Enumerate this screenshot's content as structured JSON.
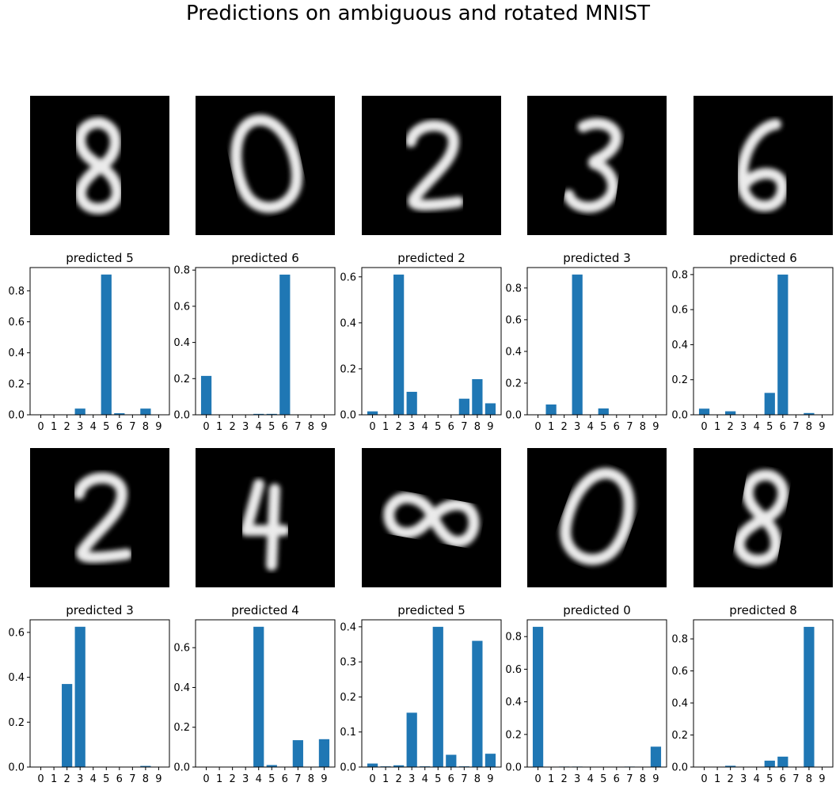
{
  "title": "Predictions on ambiguous and rotated MNIST",
  "colors": {
    "bar": "#1f77b4",
    "image_background": "#000000",
    "stroke": "#ffffff"
  },
  "panels": [
    {
      "image_glyph": "8",
      "image_rotation": 0
    },
    {
      "image_glyph": "0",
      "image_rotation": -12
    },
    {
      "image_glyph": "2",
      "image_rotation": 0
    },
    {
      "image_glyph": "3",
      "image_rotation": 8
    },
    {
      "image_glyph": "6",
      "image_rotation": 0
    },
    {
      "image_glyph": "2",
      "image_rotation": 0
    },
    {
      "image_glyph": "4",
      "image_rotation": 0
    },
    {
      "image_glyph": "8",
      "image_rotation": -80
    },
    {
      "image_glyph": "0",
      "image_rotation": 20
    },
    {
      "image_glyph": "8",
      "image_rotation": 10
    }
  ],
  "chart_data": [
    {
      "type": "bar",
      "title": "predicted 5",
      "categories": [
        "0",
        "1",
        "2",
        "3",
        "4",
        "5",
        "6",
        "7",
        "8",
        "9"
      ],
      "values": [
        0,
        0,
        0,
        0.04,
        0,
        0.905,
        0.01,
        0,
        0.04,
        0
      ],
      "yticks": [
        0.0,
        0.2,
        0.4,
        0.6,
        0.8
      ],
      "ylim": [
        0,
        0.95
      ]
    },
    {
      "type": "bar",
      "title": "predicted 6",
      "categories": [
        "0",
        "1",
        "2",
        "3",
        "4",
        "5",
        "6",
        "7",
        "8",
        "9"
      ],
      "values": [
        0.215,
        0,
        0,
        0,
        0.005,
        0.005,
        0.775,
        0,
        0,
        0
      ],
      "yticks": [
        0.0,
        0.2,
        0.4,
        0.6,
        0.8
      ],
      "ylim": [
        0,
        0.814
      ]
    },
    {
      "type": "bar",
      "title": "predicted 2",
      "categories": [
        "0",
        "1",
        "2",
        "3",
        "4",
        "5",
        "6",
        "7",
        "8",
        "9"
      ],
      "values": [
        0.015,
        0,
        0.61,
        0.1,
        0,
        0,
        0,
        0.07,
        0.155,
        0.05
      ],
      "yticks": [
        0.0,
        0.2,
        0.4,
        0.6
      ],
      "ylim": [
        0,
        0.6405
      ]
    },
    {
      "type": "bar",
      "title": "predicted 3",
      "categories": [
        "0",
        "1",
        "2",
        "3",
        "4",
        "5",
        "6",
        "7",
        "8",
        "9"
      ],
      "values": [
        0,
        0.065,
        0,
        0.885,
        0,
        0.04,
        0,
        0,
        0,
        0
      ],
      "yticks": [
        0.0,
        0.2,
        0.4,
        0.6,
        0.8
      ],
      "ylim": [
        0,
        0.929
      ]
    },
    {
      "type": "bar",
      "title": "predicted 6",
      "categories": [
        "0",
        "1",
        "2",
        "3",
        "4",
        "5",
        "6",
        "7",
        "8",
        "9"
      ],
      "values": [
        0.035,
        0,
        0.02,
        0,
        0,
        0.125,
        0.8,
        0,
        0.01,
        0
      ],
      "yticks": [
        0.0,
        0.2,
        0.4,
        0.6,
        0.8
      ],
      "ylim": [
        0,
        0.84
      ]
    },
    {
      "type": "bar",
      "title": "predicted 3",
      "categories": [
        "0",
        "1",
        "2",
        "3",
        "4",
        "5",
        "6",
        "7",
        "8",
        "9"
      ],
      "values": [
        0,
        0,
        0.37,
        0.625,
        0,
        0,
        0,
        0,
        0.005,
        0
      ],
      "yticks": [
        0.0,
        0.2,
        0.4,
        0.6
      ],
      "ylim": [
        0,
        0.656
      ]
    },
    {
      "type": "bar",
      "title": "predicted 4",
      "categories": [
        "0",
        "1",
        "2",
        "3",
        "4",
        "5",
        "6",
        "7",
        "8",
        "9"
      ],
      "values": [
        0,
        0,
        0,
        0,
        0.705,
        0.01,
        0,
        0.135,
        0,
        0.14
      ],
      "yticks": [
        0.0,
        0.2,
        0.4,
        0.6
      ],
      "ylim": [
        0,
        0.74
      ]
    },
    {
      "type": "bar",
      "title": "predicted 5",
      "categories": [
        "0",
        "1",
        "2",
        "3",
        "4",
        "5",
        "6",
        "7",
        "8",
        "9"
      ],
      "values": [
        0.01,
        0.002,
        0.005,
        0.155,
        0.002,
        0.4,
        0.035,
        0.002,
        0.36,
        0.038
      ],
      "yticks": [
        0.0,
        0.1,
        0.2,
        0.3,
        0.4
      ],
      "ylim": [
        0,
        0.42
      ]
    },
    {
      "type": "bar",
      "title": "predicted 0",
      "categories": [
        "0",
        "1",
        "2",
        "3",
        "4",
        "5",
        "6",
        "7",
        "8",
        "9"
      ],
      "values": [
        0.86,
        0,
        0.003,
        0.003,
        0,
        0,
        0,
        0.003,
        0,
        0.125
      ],
      "yticks": [
        0.0,
        0.2,
        0.4,
        0.6,
        0.8
      ],
      "ylim": [
        0,
        0.903
      ]
    },
    {
      "type": "bar",
      "title": "predicted 8",
      "categories": [
        "0",
        "1",
        "2",
        "3",
        "4",
        "5",
        "6",
        "7",
        "8",
        "9"
      ],
      "values": [
        0,
        0,
        0.008,
        0,
        0,
        0.04,
        0.065,
        0,
        0.875,
        0
      ],
      "yticks": [
        0.0,
        0.2,
        0.4,
        0.6,
        0.8
      ],
      "ylim": [
        0,
        0.919
      ]
    }
  ]
}
